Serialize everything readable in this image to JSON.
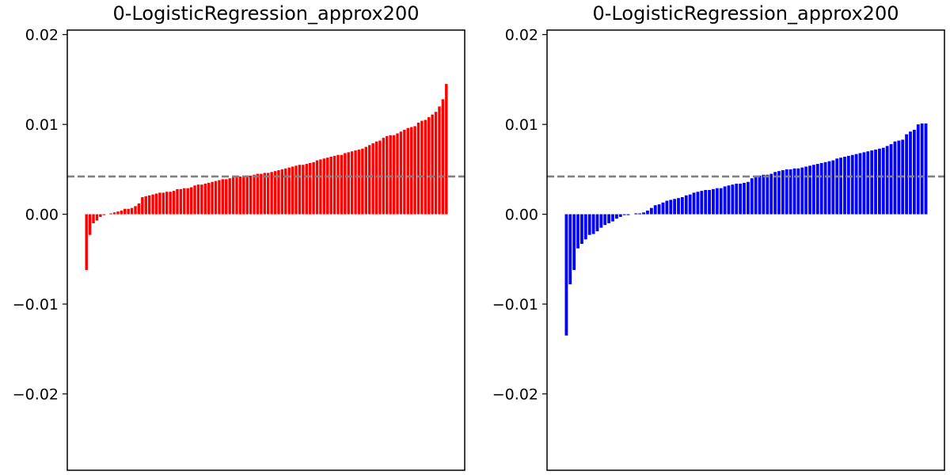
{
  "colors": {
    "background": "#ffffff",
    "axes": "#000000",
    "reference_line": "#808080"
  },
  "chart_data": [
    {
      "type": "bar",
      "title": "0-LogisticRegression_approx200",
      "xlabel": "",
      "ylabel": "",
      "ylim": [
        -0.0285,
        0.0205
      ],
      "yticks": [
        0.02,
        0.01,
        0.0,
        -0.01,
        -0.02
      ],
      "ytick_labels": [
        "0.02",
        "0.01",
        "0.00",
        "−0.01",
        "−0.02"
      ],
      "show_xticks": false,
      "bar_color": "#ff0000",
      "reference_line": {
        "y": 0.0042,
        "style": "dashed",
        "color": "#808080"
      },
      "values": [
        -0.0062,
        -0.0023,
        -0.001,
        -0.0007,
        -0.0003,
        -0.0001,
        0.0,
        0.0001,
        0.0002,
        0.0003,
        0.0004,
        0.0006,
        0.0006,
        0.0007,
        0.0009,
        0.0012,
        0.0019,
        0.002,
        0.0021,
        0.0022,
        0.0023,
        0.0024,
        0.0024,
        0.0025,
        0.0025,
        0.0026,
        0.0028,
        0.0028,
        0.0029,
        0.0029,
        0.003,
        0.0032,
        0.0033,
        0.0033,
        0.0034,
        0.0035,
        0.0036,
        0.0037,
        0.0038,
        0.0039,
        0.0039,
        0.004,
        0.0041,
        0.0041,
        0.0042,
        0.0042,
        0.0043,
        0.0043,
        0.0044,
        0.0045,
        0.0045,
        0.0046,
        0.0046,
        0.0047,
        0.0048,
        0.0049,
        0.005,
        0.0051,
        0.0052,
        0.0053,
        0.0054,
        0.0055,
        0.0055,
        0.0056,
        0.0057,
        0.0058,
        0.006,
        0.0061,
        0.0062,
        0.0063,
        0.0064,
        0.0065,
        0.0066,
        0.0066,
        0.0068,
        0.0069,
        0.007,
        0.0071,
        0.0072,
        0.0073,
        0.0075,
        0.0077,
        0.0079,
        0.0081,
        0.0082,
        0.0085,
        0.0087,
        0.0088,
        0.0088,
        0.009,
        0.0092,
        0.0094,
        0.0096,
        0.0097,
        0.0098,
        0.0102,
        0.0104,
        0.0105,
        0.0108,
        0.0111,
        0.0114,
        0.012,
        0.0128,
        0.0145
      ]
    },
    {
      "type": "bar",
      "title": "0-LogisticRegression_approx200",
      "xlabel": "",
      "ylabel": "",
      "ylim": [
        -0.0285,
        0.0205
      ],
      "yticks": [
        0.02,
        0.01,
        0.0,
        -0.01,
        -0.02
      ],
      "ytick_labels": [
        "0.02",
        "0.01",
        "0.00",
        "−0.01",
        "−0.02"
      ],
      "show_xticks": false,
      "bar_color": "#0000ff",
      "reference_line": {
        "y": 0.0042,
        "style": "dashed",
        "color": "#808080"
      },
      "values": [
        -0.0135,
        -0.0078,
        -0.0062,
        -0.0038,
        -0.0033,
        -0.0028,
        -0.0023,
        -0.0022,
        -0.0019,
        -0.0015,
        -0.0012,
        -0.001,
        -0.0008,
        -0.0005,
        -0.0003,
        -0.0001,
        -0.0001,
        0.0,
        0.0001,
        0.0001,
        0.0002,
        0.0004,
        0.0007,
        0.001,
        0.0011,
        0.0013,
        0.0015,
        0.0016,
        0.0017,
        0.0018,
        0.0019,
        0.0021,
        0.0022,
        0.0024,
        0.0025,
        0.0026,
        0.0027,
        0.0027,
        0.0028,
        0.0029,
        0.0029,
        0.0031,
        0.0032,
        0.0033,
        0.0034,
        0.0034,
        0.0035,
        0.0036,
        0.004,
        0.0042,
        0.0043,
        0.0044,
        0.0044,
        0.0045,
        0.0047,
        0.0048,
        0.0049,
        0.005,
        0.005,
        0.0051,
        0.0051,
        0.0052,
        0.0053,
        0.0054,
        0.0055,
        0.0056,
        0.0057,
        0.0058,
        0.0059,
        0.006,
        0.0062,
        0.0063,
        0.0064,
        0.0065,
        0.0066,
        0.0067,
        0.0068,
        0.0069,
        0.007,
        0.0071,
        0.0072,
        0.0073,
        0.0074,
        0.0076,
        0.0078,
        0.0081,
        0.0082,
        0.0083,
        0.0089,
        0.0092,
        0.0094,
        0.01,
        0.0101,
        0.0101
      ]
    }
  ]
}
